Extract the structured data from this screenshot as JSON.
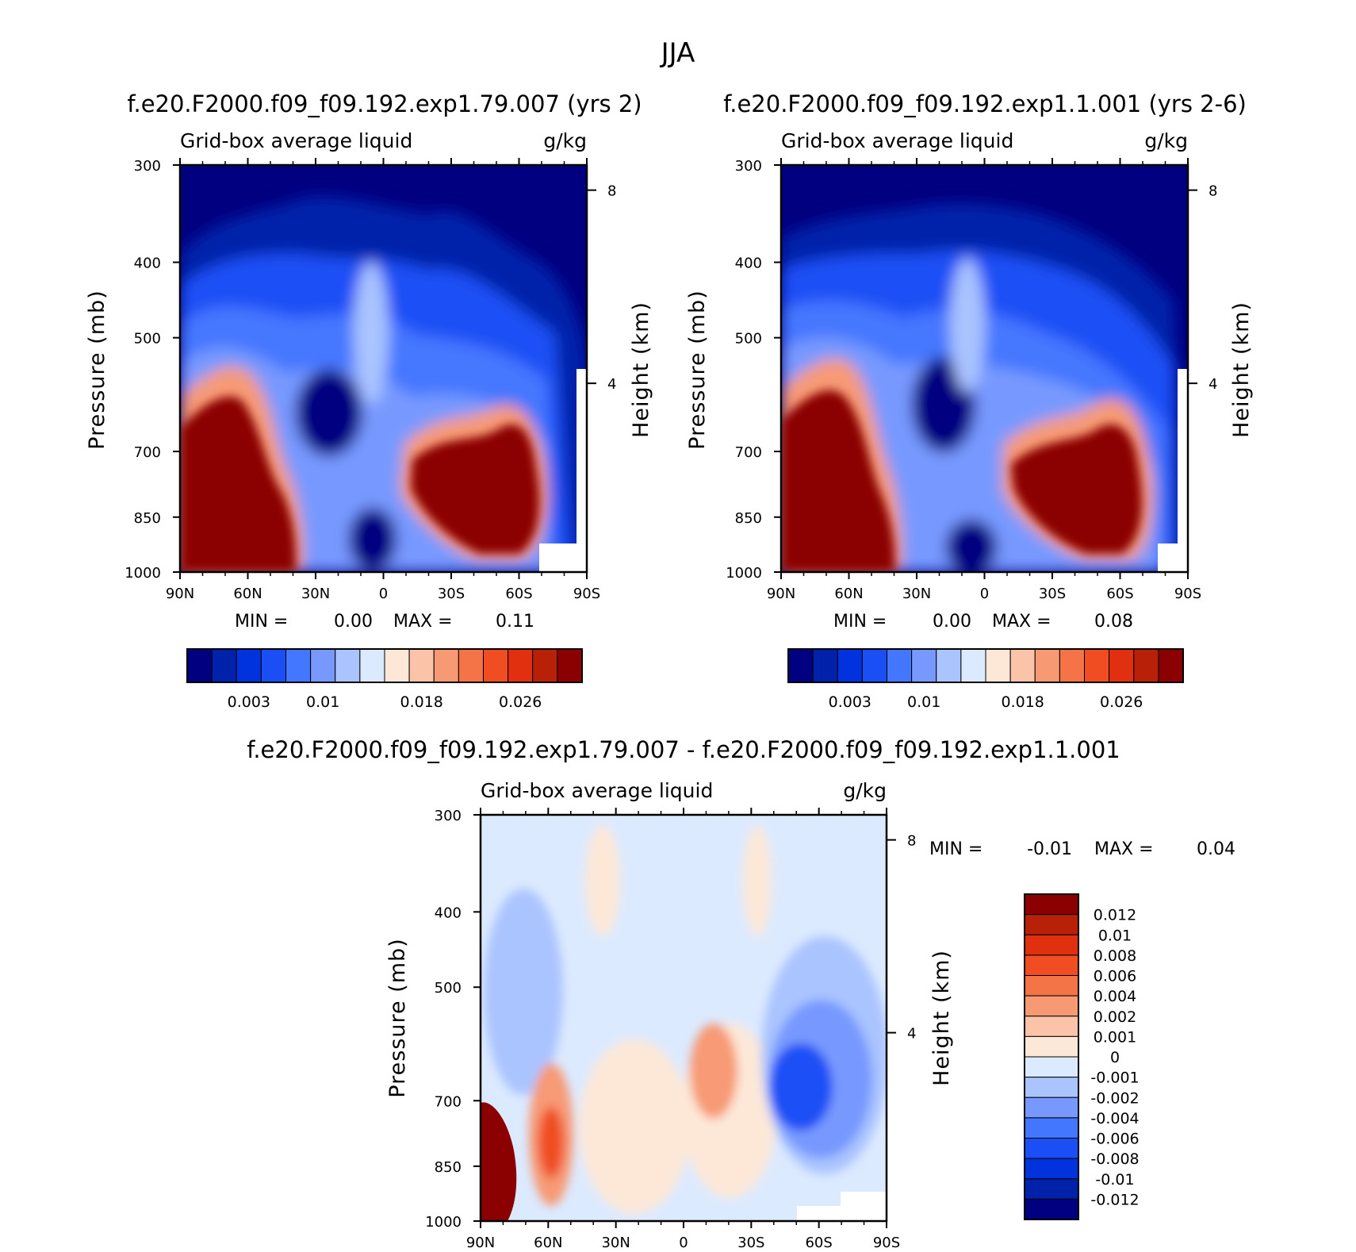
{
  "figure": {
    "season": "JJA",
    "run1": "f.e20.F2000.f09_f09.192.exp1.79.007 (yrs 2)",
    "run2": "f.e20.F2000.f09_f09.192.exp1.1.001 (yrs 2-6)",
    "diff_title": "f.e20.F2000.f09_f09.192.exp1.79.007 - f.e20.F2000.f09_f09.192.exp1.1.001"
  },
  "colors": {
    "abs_scale": [
      "#000080",
      "#0022aa",
      "#0033dd",
      "#1a4ff5",
      "#4477ff",
      "#7799ff",
      "#aac4ff",
      "#dceaff",
      "#fde8d8",
      "#fbc4a8",
      "#f79a74",
      "#f47448",
      "#f04d22",
      "#e03010",
      "#b82008",
      "#8b0000"
    ],
    "diff_scale": [
      "#8b0000",
      "#b82008",
      "#e03010",
      "#f04d22",
      "#f47448",
      "#f79a74",
      "#fbc4a8",
      "#fde8d8",
      "#dceaff",
      "#aac4ff",
      "#7799ff",
      "#4477ff",
      "#1a4ff5",
      "#0033dd",
      "#0022aa",
      "#000080"
    ],
    "background_dark": "#000080",
    "diff_background": "#dceaff"
  },
  "chart_data": [
    {
      "type": "heatmap",
      "id": "panel-1",
      "title": "f.e20.F2000.f09_f09.192.exp1.79.007 (yrs 2)",
      "variable": "Grid-box average liquid",
      "units": "g/kg",
      "ylabel": "Pressure (mb)",
      "ylabel_right": "Height (km)",
      "x_ticks": [
        "90N",
        "60N",
        "30N",
        "0",
        "30S",
        "60S",
        "90S"
      ],
      "y_ticks": [
        "300",
        "400",
        "500",
        "700",
        "850",
        "1000"
      ],
      "y_values": [
        300,
        400,
        500,
        700,
        850,
        1000
      ],
      "height_ticks": [
        "8",
        "4"
      ],
      "height_values": [
        8,
        4
      ],
      "min_label": "MIN =",
      "min_value": "0.00",
      "max_label": "MAX =",
      "max_value": "0.11",
      "colorbar_labels": [
        "0.003",
        "0.01",
        "0.018",
        "0.026"
      ],
      "colorbar_label_boxes": [
        2,
        5,
        9,
        13
      ]
    },
    {
      "type": "heatmap",
      "id": "panel-2",
      "title": "f.e20.F2000.f09_f09.192.exp1.1.001 (yrs 2-6)",
      "variable": "Grid-box average liquid",
      "units": "g/kg",
      "ylabel": "Pressure (mb)",
      "ylabel_right": "Height (km)",
      "x_ticks": [
        "90N",
        "60N",
        "30N",
        "0",
        "30S",
        "60S",
        "90S"
      ],
      "y_ticks": [
        "300",
        "400",
        "500",
        "700",
        "850",
        "1000"
      ],
      "y_values": [
        300,
        400,
        500,
        700,
        850,
        1000
      ],
      "height_ticks": [
        "8",
        "4"
      ],
      "height_values": [
        8,
        4
      ],
      "min_label": "MIN =",
      "min_value": "0.00",
      "max_label": "MAX =",
      "max_value": "0.08",
      "colorbar_labels": [
        "0.003",
        "0.01",
        "0.018",
        "0.026"
      ],
      "colorbar_label_boxes": [
        2,
        5,
        9,
        13
      ]
    },
    {
      "type": "heatmap",
      "id": "panel-diff",
      "title": "f.e20.F2000.f09_f09.192.exp1.79.007 - f.e20.F2000.f09_f09.192.exp1.1.001",
      "variable": "Grid-box average liquid",
      "units": "g/kg",
      "ylabel": "Pressure (mb)",
      "ylabel_right": "Height (km)",
      "x_ticks": [
        "90N",
        "60N",
        "30N",
        "0",
        "30S",
        "60S",
        "90S"
      ],
      "y_ticks": [
        "300",
        "400",
        "500",
        "700",
        "850",
        "1000"
      ],
      "y_values": [
        300,
        400,
        500,
        700,
        850,
        1000
      ],
      "height_ticks": [
        "8",
        "4"
      ],
      "height_values": [
        8,
        4
      ],
      "min_label": "MIN =",
      "min_value": "-0.01",
      "max_label": "MAX =",
      "max_value": "0.04",
      "colorbar_labels": [
        "0.012",
        "0.01",
        "0.008",
        "0.006",
        "0.004",
        "0.002",
        "0.001",
        "0",
        "-0.001",
        "-0.002",
        "-0.004",
        "-0.006",
        "-0.008",
        "-0.01",
        "-0.012"
      ]
    }
  ]
}
